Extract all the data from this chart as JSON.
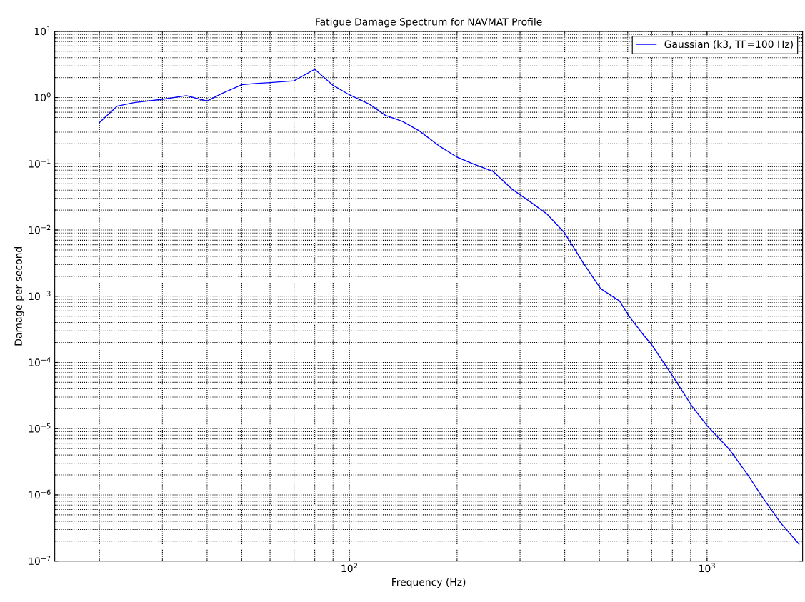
{
  "chart_data": {
    "type": "line",
    "title": "Fatigue Damage Spectrum for NAVMAT Profile",
    "xlabel": "Frequency (Hz)",
    "ylabel": "Damage per second",
    "log": "xy",
    "grid": true,
    "legend": "top right",
    "marker": "none",
    "line_style": "solid",
    "xlim": [
      15,
      1850
    ],
    "ylim": [
      1e-07,
      10
    ],
    "xticks": [
      {
        "value": 100,
        "label": "10$^{2}$"
      },
      {
        "value": 1000,
        "label": "10$^{3}$"
      }
    ],
    "yticks": [
      {
        "value": 1e-07,
        "label": "10$^{−7}$"
      },
      {
        "value": 1e-06,
        "label": "10$^{−6}$"
      },
      {
        "value": 1e-05,
        "label": "10$^{−5}$"
      },
      {
        "value": 0.0001,
        "label": "10$^{−4}$"
      },
      {
        "value": 0.001,
        "label": "10$^{−3}$"
      },
      {
        "value": 0.01,
        "label": "10$^{−2}$"
      },
      {
        "value": 0.1,
        "label": "10$^{−1}$"
      },
      {
        "value": 1,
        "label": "10$^{0}$"
      },
      {
        "value": 10,
        "label": "10$^{1}$"
      }
    ],
    "x": [
      20,
      22.4,
      25,
      30,
      35,
      40,
      44,
      50,
      54.5,
      60,
      70,
      80,
      90,
      100,
      114,
      126,
      141,
      157,
      179,
      200,
      223,
      252,
      285,
      318,
      357,
      400,
      452,
      504,
      569,
      605,
      664,
      700,
      804,
      909,
      1000,
      1153,
      1304,
      1419,
      1604,
      1808
    ],
    "series": [
      {
        "name": "Gaussian (k3, TF=100 Hz)",
        "color": "#0000ff",
        "values": [
          0.42,
          0.74,
          0.84,
          0.94,
          1.07,
          0.885,
          1.15,
          1.56,
          1.63,
          1.68,
          1.79,
          2.67,
          1.53,
          1.1,
          0.79,
          0.54,
          0.435,
          0.313,
          0.183,
          0.126,
          0.0986,
          0.0769,
          0.0414,
          0.0274,
          0.0174,
          0.009,
          0.0031,
          0.0013,
          0.00085,
          0.0005,
          0.00026,
          0.000185,
          6.05e-05,
          2.15e-05,
          1.11e-05,
          4.9e-06,
          1.96e-06,
          9.7e-07,
          3.8e-07,
          1.8e-07
        ]
      }
    ]
  }
}
